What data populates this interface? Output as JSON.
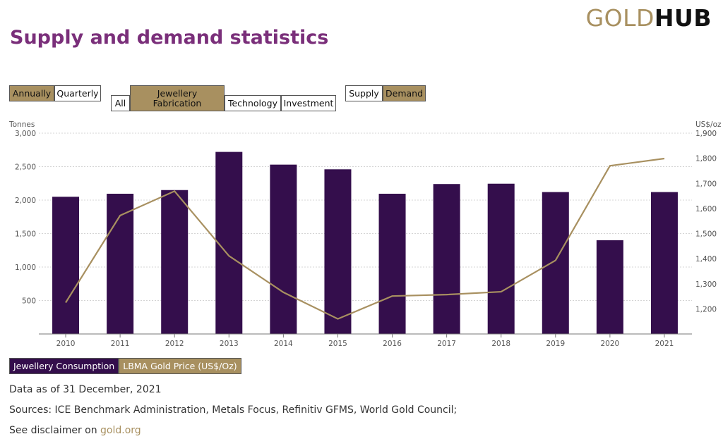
{
  "logo": {
    "part1": "GOLD",
    "part2": "HUB"
  },
  "title": "Supply and demand statistics",
  "controls": {
    "period": [
      {
        "label": "Annually",
        "active": true
      },
      {
        "label": "Quarterly",
        "active": false
      }
    ],
    "sector": [
      {
        "label": "All",
        "active": false
      },
      {
        "label": "Jewellery Fabrication",
        "active": true
      },
      {
        "label": "Technology",
        "active": false
      },
      {
        "label": "Investment",
        "active": false
      }
    ],
    "side": [
      {
        "label": "Supply",
        "active": false
      },
      {
        "label": "Demand",
        "active": true
      }
    ]
  },
  "legend": {
    "consumption": {
      "label": "Jewellery Consumption",
      "color": "#340e4c"
    },
    "price": {
      "label": "LBMA Gold Price (US$/Oz)",
      "color": "#a89060"
    }
  },
  "footer": {
    "date": "Data as of 31 December, 2021",
    "sources": "Sources: ICE Benchmark Administration, Metals Focus, Refinitiv GFMS, World Gold Council;",
    "disclaimer_prefix": "See disclaimer on ",
    "disclaimer_link": "gold.org"
  },
  "chart_data": {
    "type": "bar",
    "categories": [
      "2010",
      "2011",
      "2012",
      "2013",
      "2014",
      "2015",
      "2016",
      "2017",
      "2018",
      "2019",
      "2020",
      "2021"
    ],
    "series": [
      {
        "name": "Jewellery Consumption",
        "type": "bar",
        "axis": "left",
        "color": "#340e4c",
        "values": [
          2050,
          2095,
          2150,
          2720,
          2530,
          2460,
          2095,
          2240,
          2245,
          2120,
          1400,
          2120
        ]
      },
      {
        "name": "LBMA Gold Price (US$/Oz)",
        "type": "line",
        "axis": "right",
        "color": "#a89060",
        "values": [
          1225,
          1572,
          1669,
          1411,
          1266,
          1160,
          1251,
          1257,
          1268,
          1393,
          1770,
          1799
        ]
      }
    ],
    "ylabel_left": "Tonnes",
    "ylabel_right": "US$/oz",
    "ylim_left": [
      0,
      3000
    ],
    "ylim_right": [
      1100,
      1900
    ],
    "yticks_left": [
      "500",
      "1,000",
      "1,500",
      "2,000",
      "2,500",
      "3,000"
    ],
    "yticks_right": [
      "1,200",
      "1,300",
      "1,400",
      "1,500",
      "1,600",
      "1,700",
      "1,800",
      "1,900"
    ],
    "grid": true,
    "legend_position": "bottom-left"
  }
}
